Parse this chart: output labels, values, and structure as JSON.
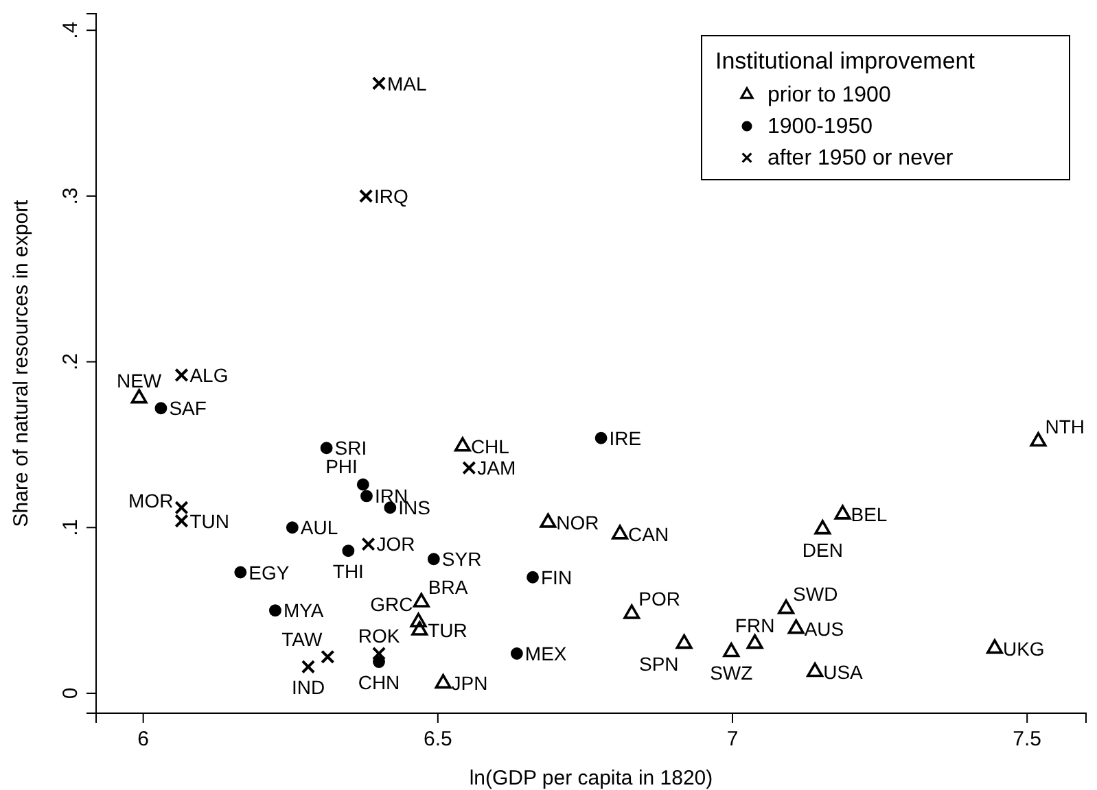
{
  "chart_data": {
    "type": "scatter",
    "xlabel": "ln(GDP per capita in 1820)",
    "ylabel": "Share of natural resources in export",
    "legend_title": "Institutional improvement",
    "legend": "top right",
    "grid": false,
    "xlim": [
      5.92,
      7.6
    ],
    "xticks": [
      6,
      6.5,
      7,
      7.5
    ],
    "ylim": [
      -0.012,
      0.41
    ],
    "yticks": [
      {
        "value": 0,
        "label": "0"
      },
      {
        "value": 0.1,
        "label": ".1"
      },
      {
        "value": 0.2,
        "label": ".2"
      },
      {
        "value": 0.3,
        "label": ".3"
      },
      {
        "value": 0.4,
        "label": ".4"
      }
    ],
    "series": [
      {
        "name": "prior to 1900",
        "color": "#000000",
        "marker": "triangle",
        "x": [
          5.993,
          6.542,
          6.687,
          6.809,
          7.187,
          7.153,
          7.519,
          6.472,
          6.467,
          6.469,
          6.509,
          6.829,
          7.091,
          7.108,
          6.918,
          7.038,
          6.998,
          7.14,
          7.445
        ],
        "values": [
          0.178,
          0.149,
          0.103,
          0.096,
          0.108,
          0.099,
          0.152,
          0.055,
          0.043,
          0.038,
          0.006,
          0.048,
          0.051,
          0.039,
          0.03,
          0.03,
          0.025,
          0.013,
          0.027
        ],
        "value_labels": [
          "NEW",
          "CHL",
          "NOR",
          "CAN",
          "BEL",
          "DEN",
          "NTH",
          "BRA",
          "GRC",
          "TUR",
          "JPN",
          "POR",
          "SWD",
          "AUS",
          "SPN",
          "FRN",
          "SWZ",
          "USA",
          "UKG"
        ]
      },
      {
        "name": "1900-1950",
        "color": "#000000",
        "marker": "circle",
        "x": [
          6.03,
          6.311,
          6.373,
          6.379,
          6.419,
          6.253,
          6.348,
          6.493,
          6.165,
          6.224,
          6.4,
          6.634,
          6.777,
          6.661
        ],
        "values": [
          0.172,
          0.148,
          0.126,
          0.119,
          0.112,
          0.1,
          0.086,
          0.081,
          0.073,
          0.05,
          0.019,
          0.024,
          0.154,
          0.07
        ],
        "value_labels": [
          "SAF",
          "SRI",
          "PHI",
          "IRN",
          "INS",
          "AUL",
          "THI",
          "SYR",
          "EGY",
          "MYA",
          "CHN",
          "MEX",
          "IRE",
          "FIN"
        ]
      },
      {
        "name": "after 1950 or never",
        "color": "#000000",
        "marker": "cross",
        "x": [
          6.4,
          6.378,
          6.065,
          6.065,
          6.065,
          6.382,
          6.553,
          6.313,
          6.28,
          6.4
        ],
        "values": [
          0.368,
          0.3,
          0.192,
          0.112,
          0.104,
          0.09,
          0.136,
          0.022,
          0.016,
          0.024
        ],
        "value_labels": [
          "MAL",
          "IRQ",
          "ALG",
          "MOR",
          "TUN",
          "JOR",
          "JAM",
          "TAW",
          "IND",
          "ROK"
        ]
      }
    ]
  }
}
